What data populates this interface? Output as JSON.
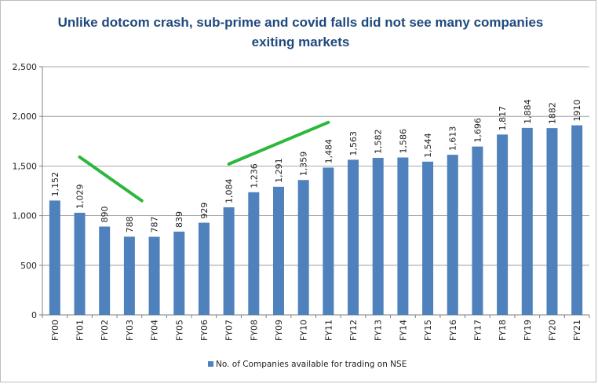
{
  "colors": {
    "bar": "#4f81bd",
    "title": "#1f497d",
    "trend": "#2db83d",
    "axis": "#7f7f7f",
    "grid": "#8c8c8c"
  },
  "chart_data": {
    "type": "bar",
    "title_lines": [
      "Unlike dotcom crash, sub-prime and covid falls did not see many companies",
      "exiting markets"
    ],
    "categories": [
      "FY00",
      "FY01",
      "FY02",
      "FY03",
      "FY04",
      "FY05",
      "FY06",
      "FY07",
      "FY08",
      "FY09",
      "FY10",
      "FY11",
      "FY12",
      "FY13",
      "FY14",
      "FY15",
      "FY16",
      "FY17",
      "FY18",
      "FY19",
      "FY20",
      "FY21"
    ],
    "series": [
      {
        "name": "No. of Companies  available for trading on NSE",
        "values": [
          1152,
          1029,
          890,
          788,
          787,
          839,
          929,
          1084,
          1236,
          1291,
          1359,
          1484,
          1563,
          1582,
          1586,
          1544,
          1613,
          1696,
          1817,
          1884,
          1882,
          1910
        ]
      }
    ],
    "data_labels": [
      "1,152",
      "1,029",
      "890",
      "788",
      "787",
      "839",
      "929",
      "1,084",
      "1,236",
      "1,291",
      "1,359",
      "1,484",
      "1,563",
      "1,582",
      "1,586",
      "1,544",
      "1,613",
      "1,696",
      "1,817",
      "1,884",
      "1882",
      "1910"
    ],
    "ylim": [
      0,
      2500
    ],
    "yticks": [
      0,
      500,
      1000,
      1500,
      2000,
      2500
    ],
    "ytick_labels": [
      "0",
      "500",
      "1,000",
      "1,500",
      "2,000",
      "2,500"
    ],
    "grid": true,
    "legend_position": "bottom",
    "annotations": [
      {
        "type": "trend-line",
        "from": {
          "category_index": 1,
          "value": 1590
        },
        "to": {
          "category_index": 3.5,
          "value": 1150
        }
      },
      {
        "type": "trend-line",
        "from": {
          "category_index": 7,
          "value": 1520
        },
        "to": {
          "category_index": 11,
          "value": 1940
        }
      }
    ]
  }
}
